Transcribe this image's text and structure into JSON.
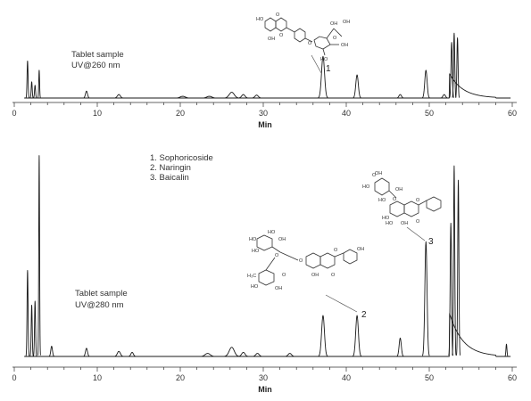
{
  "chart_data": [
    {
      "type": "line",
      "sample_label": "Tablet sample",
      "detector_label": "UV@260 nm",
      "xlabel": "Min",
      "xlim": [
        0,
        60
      ],
      "xticks": [
        "0",
        "10",
        "20",
        "30",
        "40",
        "50",
        "60"
      ],
      "minor_ticks": [
        2,
        4,
        6,
        8,
        12,
        14,
        16,
        18,
        22,
        24,
        26,
        28,
        32,
        34,
        36,
        38,
        42,
        44,
        46,
        48,
        52,
        54,
        56,
        58
      ],
      "peaks": [
        {
          "rt": 1.6,
          "h": 0.32,
          "w": 0.06
        },
        {
          "rt": 2.1,
          "h": 0.14,
          "w": 0.06
        },
        {
          "rt": 2.5,
          "h": 0.11,
          "w": 0.06
        },
        {
          "rt": 3.0,
          "h": 0.24,
          "w": 0.05
        },
        {
          "rt": 8.7,
          "h": 0.06,
          "w": 0.12
        },
        {
          "rt": 12.6,
          "h": 0.03,
          "w": 0.18
        },
        {
          "rt": 20.3,
          "h": 0.015,
          "w": 0.3
        },
        {
          "rt": 23.5,
          "h": 0.015,
          "w": 0.3
        },
        {
          "rt": 26.2,
          "h": 0.05,
          "w": 0.3
        },
        {
          "rt": 27.6,
          "h": 0.03,
          "w": 0.2
        },
        {
          "rt": 29.2,
          "h": 0.025,
          "w": 0.2
        },
        {
          "rt": 37.2,
          "h": 0.36,
          "w": 0.18
        },
        {
          "rt": 41.3,
          "h": 0.2,
          "w": 0.15
        },
        {
          "rt": 46.5,
          "h": 0.03,
          "w": 0.15
        },
        {
          "rt": 49.6,
          "h": 0.24,
          "w": 0.14
        },
        {
          "rt": 51.8,
          "h": 0.03,
          "w": 0.15
        },
        {
          "rt": 52.7,
          "h": 0.48,
          "w": 0.08
        },
        {
          "rt": 53.0,
          "h": 0.56,
          "w": 0.07
        },
        {
          "rt": 53.4,
          "h": 0.52,
          "w": 0.07
        }
      ],
      "annotations": [
        {
          "label": "1",
          "rt": 37.2
        }
      ]
    },
    {
      "type": "line",
      "sample_label": "Tablet sample",
      "detector_label": "UV@280 nm",
      "xlabel": "Min",
      "xlim": [
        0,
        60
      ],
      "xticks": [
        "0",
        "10",
        "20",
        "30",
        "40",
        "50",
        "60"
      ],
      "minor_ticks": [
        2,
        4,
        6,
        8,
        12,
        14,
        16,
        18,
        22,
        24,
        26,
        28,
        32,
        34,
        36,
        38,
        42,
        44,
        46,
        48,
        52,
        54,
        56,
        58
      ],
      "peaks": [
        {
          "rt": 1.6,
          "h": 0.42,
          "w": 0.06
        },
        {
          "rt": 2.1,
          "h": 0.25,
          "w": 0.06
        },
        {
          "rt": 2.5,
          "h": 0.27,
          "w": 0.06
        },
        {
          "rt": 3.0,
          "h": 0.98,
          "w": 0.05
        },
        {
          "rt": 4.5,
          "h": 0.05,
          "w": 0.1
        },
        {
          "rt": 8.7,
          "h": 0.04,
          "w": 0.12
        },
        {
          "rt": 12.6,
          "h": 0.025,
          "w": 0.18
        },
        {
          "rt": 14.2,
          "h": 0.02,
          "w": 0.15
        },
        {
          "rt": 23.3,
          "h": 0.015,
          "w": 0.3
        },
        {
          "rt": 26.2,
          "h": 0.045,
          "w": 0.3
        },
        {
          "rt": 27.6,
          "h": 0.02,
          "w": 0.2
        },
        {
          "rt": 29.3,
          "h": 0.015,
          "w": 0.2
        },
        {
          "rt": 33.2,
          "h": 0.015,
          "w": 0.2
        },
        {
          "rt": 37.2,
          "h": 0.2,
          "w": 0.17
        },
        {
          "rt": 41.3,
          "h": 0.2,
          "w": 0.16
        },
        {
          "rt": 46.5,
          "h": 0.09,
          "w": 0.13
        },
        {
          "rt": 49.6,
          "h": 0.56,
          "w": 0.13
        },
        {
          "rt": 52.6,
          "h": 0.65,
          "w": 0.08
        },
        {
          "rt": 53.0,
          "h": 0.93,
          "w": 0.07
        },
        {
          "rt": 53.5,
          "h": 0.86,
          "w": 0.07
        },
        {
          "rt": 59.3,
          "h": 0.06,
          "w": 0.06
        }
      ],
      "legend": [
        "1.  Sophoricoside",
        "2.  Naringin",
        "3.  Baicalin"
      ],
      "annotations": [
        {
          "label": "2",
          "rt": 41.3
        },
        {
          "label": "3",
          "rt": 49.6
        }
      ]
    }
  ]
}
